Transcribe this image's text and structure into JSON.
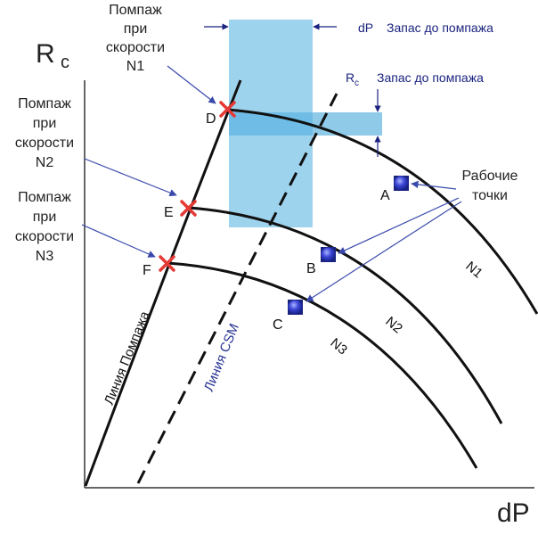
{
  "axes": {
    "y_label": "R",
    "y_sub": "c",
    "x_label": "dP"
  },
  "surge_labels": [
    {
      "id": "n1",
      "lines": [
        "Помпаж",
        "при",
        "скорости",
        "N1"
      ]
    },
    {
      "id": "n2",
      "lines": [
        "Помпаж",
        "при",
        "скорости",
        "N2"
      ]
    },
    {
      "id": "n3",
      "lines": [
        "Помпаж",
        "при",
        "скорости",
        "N3"
      ]
    }
  ],
  "margins": {
    "dp_label": "dP",
    "dp_text": "Запас до помпажа",
    "rc_label": "R",
    "rc_sub": "c",
    "rc_text": "Запас до помпажа"
  },
  "operating_points_label": [
    "Рабочие",
    "точки"
  ],
  "points": {
    "surge": [
      "D",
      "E",
      "F"
    ],
    "operating": [
      "A",
      "B",
      "C"
    ]
  },
  "curves": [
    "N1",
    "N2",
    "N3"
  ],
  "lines": {
    "surge_line": "Линия Помпажа",
    "csm_line": "Линия CSM"
  },
  "colors": {
    "band": "#9ed3ee",
    "band_overlap": "#6fbde6",
    "cross": "#e53935",
    "point_fill": "#3d47d6",
    "arrow_blue": "#5c6bc0",
    "text_blue": "#1a237e"
  }
}
